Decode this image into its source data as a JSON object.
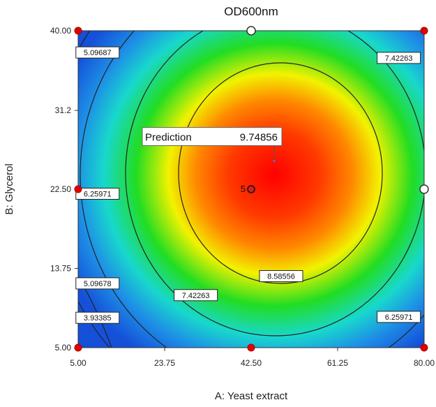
{
  "chart_data": {
    "type": "heatmap",
    "title": "OD600nm",
    "xlabel": "A: Yeast extract",
    "ylabel": "B: Glycerol",
    "xlim": [
      5,
      80
    ],
    "ylim": [
      5,
      40
    ],
    "xticks": [
      "5.00",
      "23.75",
      "42.50",
      "61.25",
      "80.00"
    ],
    "yticks": [
      "5.00",
      "13.75",
      "22.50",
      "31.2",
      "40.00"
    ],
    "contour_labels": [
      {
        "text": "5.09687",
        "x": 9.2,
        "y": 37.6
      },
      {
        "text": "7.42263",
        "x": 74.5,
        "y": 37.0
      },
      {
        "text": "6.25971",
        "x": 9.2,
        "y": 22.0
      },
      {
        "text": "5.09678",
        "x": 9.2,
        "y": 12.1
      },
      {
        "text": "3.93385",
        "x": 9.2,
        "y": 8.3
      },
      {
        "text": "7.42263",
        "x": 30.5,
        "y": 10.8
      },
      {
        "text": "8.58556",
        "x": 49.0,
        "y": 12.9
      },
      {
        "text": "6.25971",
        "x": 74.5,
        "y": 8.4
      }
    ],
    "prediction": {
      "label": "Prediction",
      "value": "9.74856",
      "x": 47.5,
      "y": 25
    },
    "center_point": {
      "label": "5",
      "x": 42.5,
      "y": 22.5
    },
    "design_points": [
      {
        "x": 5,
        "y": 40,
        "kind": "factorial"
      },
      {
        "x": 80,
        "y": 40,
        "kind": "factorial"
      },
      {
        "x": 5,
        "y": 5,
        "kind": "factorial"
      },
      {
        "x": 80,
        "y": 5,
        "kind": "factorial"
      },
      {
        "x": 5,
        "y": 22.5,
        "kind": "factorial"
      },
      {
        "x": 42.5,
        "y": 5,
        "kind": "factorial"
      },
      {
        "x": 42.5,
        "y": 40,
        "kind": "axial"
      },
      {
        "x": 80,
        "y": 22.5,
        "kind": "axial"
      }
    ],
    "colors": {
      "peak": "#ff0000",
      "orange": "#ff8800",
      "yellow": "#f2f200",
      "green": "#22dd22",
      "cyan": "#18d8cc",
      "blue": "#1e8fe6",
      "deep_blue": "#1450d8",
      "factorial_point": "#e00000",
      "axial_point": "#ffffff"
    }
  }
}
